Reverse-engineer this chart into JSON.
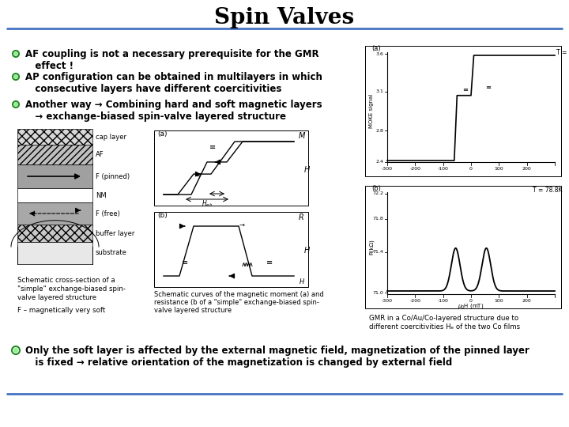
{
  "title": "Spin Valves",
  "title_fontsize": 20,
  "background_color": "#ffffff",
  "header_line_color": "#4472C4",
  "footer_line_color": "#4472C4",
  "bullet_color_fill": "#90EE90",
  "bullet_color_edge": "#228B22",
  "bullet1": "AF coupling is not a necessary prerequisite for the GMR\n   effect !",
  "bullet2": "AP configuration can be obtained in multilayers in which\n   consecutive layers have different coercitivities",
  "bullet3": "Another way → Combining hard and soft magnetic layers\n   → exchange-biased spin-valve layered structure",
  "bullet4": "Only the soft layer is affected by the external magnetic field, magnetization of the pinned layer\n   is fixed → relative orientation of the magnetization is changed by external field",
  "caption_left1": "Schematic cross-section of a",
  "caption_left2": "\"simple\" exchange-biased spin-",
  "caption_left3": "valve layered structure",
  "caption_left4": "",
  "caption_left5": "F – magnetically very soft",
  "caption_mid1": "Schematic curves of the magnetic moment (a) and",
  "caption_mid2": "resistance (b of a \"simple\" exchange-biased spin-",
  "caption_mid3": "valve layered structure",
  "caption_right1": "GMR in a Co/Au/Co-layered structure due to",
  "caption_right2": "different coercitivities Hₑ of the two Co films",
  "text_color": "#000000",
  "layer_labels": [
    "cap layer",
    "AF",
    "F (pinned)",
    "NM",
    "F (free)",
    "buffer layer",
    "substrate"
  ]
}
